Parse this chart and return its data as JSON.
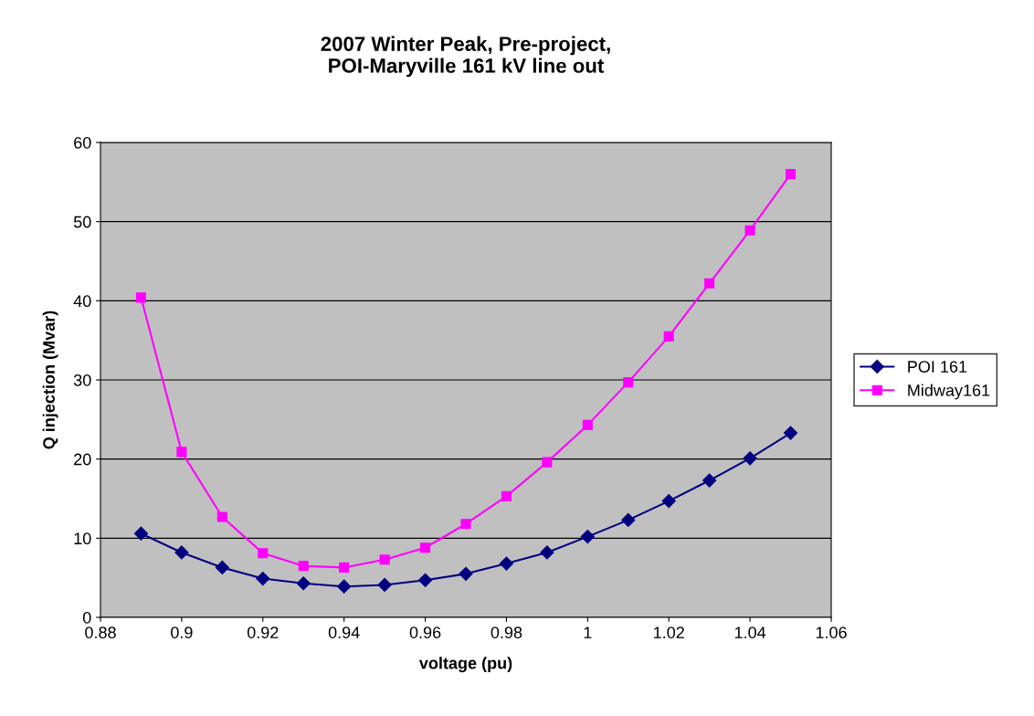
{
  "chart_data": {
    "type": "line",
    "title": "2007 Winter Peak, Pre-project,\nPOI-Maryville 161 kV line out",
    "xlabel": "voltage (pu)",
    "ylabel": "Q injection (Mvar)",
    "x": [
      0.89,
      0.9,
      0.91,
      0.92,
      0.93,
      0.94,
      0.95,
      0.96,
      0.97,
      0.98,
      0.99,
      1.0,
      1.01,
      1.02,
      1.03,
      1.04,
      1.05
    ],
    "series": [
      {
        "name": "POI 161",
        "color": "#000080",
        "marker": "diamond",
        "values": [
          10.6,
          8.2,
          6.3,
          4.9,
          4.3,
          3.9,
          4.1,
          4.7,
          5.5,
          6.8,
          8.2,
          10.2,
          12.3,
          14.7,
          17.3,
          20.1,
          23.3
        ]
      },
      {
        "name": "Midway161",
        "color": "#ff00ff",
        "marker": "square",
        "values": [
          40.4,
          20.9,
          12.7,
          8.1,
          6.5,
          6.3,
          7.3,
          8.8,
          11.8,
          15.3,
          19.6,
          24.3,
          29.7,
          35.5,
          42.2,
          48.9,
          56.0
        ]
      }
    ],
    "xlim": [
      0.88,
      1.06
    ],
    "xticks": [
      0.88,
      0.9,
      0.92,
      0.94,
      0.96,
      0.98,
      1,
      1.02,
      1.04,
      1.06
    ],
    "ylim": [
      0,
      60
    ],
    "yticks": [
      0,
      10,
      20,
      30,
      40,
      50,
      60
    ],
    "grid": "y",
    "legend": "right"
  }
}
